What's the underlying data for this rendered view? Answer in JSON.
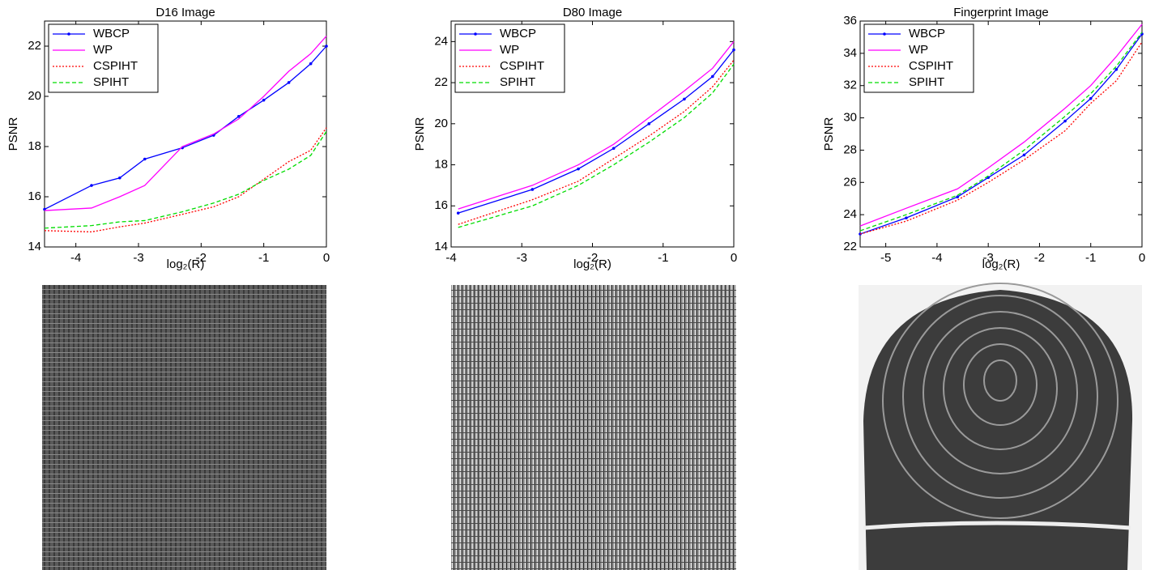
{
  "chart_data": [
    {
      "type": "line",
      "title": "D16 Image",
      "x_label": "log₂(R)",
      "y_label": "PSNR",
      "x": [
        -4.5,
        -3.75,
        -3.3,
        -2.9,
        -2.3,
        -1.8,
        -1.4,
        -1.0,
        -0.6,
        -0.25,
        0
      ],
      "series": [
        {
          "name": "WBCP",
          "color": "#0000ff",
          "style": "solid",
          "marker": true,
          "values": [
            15.5,
            16.45,
            16.75,
            17.5,
            17.95,
            18.45,
            19.2,
            19.85,
            20.55,
            21.3,
            22.0
          ]
        },
        {
          "name": "WP",
          "color": "#ff00ff",
          "style": "solid",
          "marker": false,
          "values": [
            15.45,
            15.55,
            16.0,
            16.45,
            18.0,
            18.5,
            19.1,
            20.0,
            21.0,
            21.7,
            22.4
          ]
        },
        {
          "name": "CSPIHT",
          "color": "#ff0000",
          "style": "dotted",
          "marker": false,
          "values": [
            14.65,
            14.6,
            14.8,
            14.95,
            15.3,
            15.6,
            16.0,
            16.7,
            17.4,
            17.85,
            18.75
          ]
        },
        {
          "name": "SPIHT",
          "color": "#00dd00",
          "style": "dashed",
          "marker": false,
          "values": [
            14.75,
            14.85,
            15.0,
            15.05,
            15.4,
            15.75,
            16.1,
            16.65,
            17.1,
            17.65,
            18.6
          ]
        }
      ],
      "xlim": [
        -4.5,
        0
      ],
      "xticks": [
        -4,
        -3,
        -2,
        -1,
        0
      ],
      "ylim": [
        14,
        23
      ],
      "yticks": [
        14,
        16,
        18,
        20,
        22
      ],
      "legend": "upper left"
    },
    {
      "type": "line",
      "title": "D80 Image",
      "x_label": "log₂(R)",
      "y_label": "PSNR",
      "x": [
        -3.9,
        -2.85,
        -2.2,
        -1.7,
        -1.2,
        -0.7,
        -0.3,
        0
      ],
      "series": [
        {
          "name": "WBCP",
          "color": "#0000ff",
          "style": "solid",
          "marker": true,
          "values": [
            15.65,
            16.8,
            17.8,
            18.8,
            20.0,
            21.2,
            22.3,
            23.6
          ]
        },
        {
          "name": "WP",
          "color": "#ff00ff",
          "style": "solid",
          "marker": false,
          "values": [
            15.85,
            17.0,
            18.0,
            19.0,
            20.3,
            21.6,
            22.7,
            24.0
          ]
        },
        {
          "name": "CSPIHT",
          "color": "#ff0000",
          "style": "dotted",
          "marker": false,
          "values": [
            15.1,
            16.3,
            17.2,
            18.3,
            19.4,
            20.6,
            21.8,
            23.1
          ]
        },
        {
          "name": "SPIHT",
          "color": "#00dd00",
          "style": "dashed",
          "marker": false,
          "values": [
            14.95,
            16.0,
            17.0,
            18.0,
            19.1,
            20.3,
            21.5,
            22.9
          ]
        }
      ],
      "xlim": [
        -4,
        0
      ],
      "xticks": [
        -4,
        -3,
        -2,
        -1,
        0
      ],
      "ylim": [
        14,
        25
      ],
      "yticks": [
        14,
        16,
        18,
        20,
        22,
        24
      ],
      "legend": "upper left"
    },
    {
      "type": "line",
      "title": "Fingerprint Image",
      "x_label": "log₂(R)",
      "y_label": "PSNR",
      "x": [
        -5.5,
        -4.6,
        -3.6,
        -3.0,
        -2.3,
        -1.5,
        -1.0,
        -0.5,
        0
      ],
      "series": [
        {
          "name": "WBCP",
          "color": "#0000ff",
          "style": "solid",
          "marker": true,
          "values": [
            22.8,
            23.8,
            25.1,
            26.3,
            27.7,
            29.8,
            31.2,
            33.0,
            35.2
          ]
        },
        {
          "name": "WP",
          "color": "#ff00ff",
          "style": "solid",
          "marker": false,
          "values": [
            23.3,
            24.4,
            25.6,
            26.9,
            28.5,
            30.6,
            32.0,
            33.8,
            35.8
          ]
        },
        {
          "name": "CSPIHT",
          "color": "#ff0000",
          "style": "dotted",
          "marker": false,
          "values": [
            22.8,
            23.6,
            24.9,
            26.0,
            27.4,
            29.2,
            30.9,
            32.3,
            34.7
          ]
        },
        {
          "name": "SPIHT",
          "color": "#00dd00",
          "style": "dashed",
          "marker": false,
          "values": [
            23.0,
            24.0,
            25.2,
            26.4,
            28.0,
            30.1,
            31.5,
            33.2,
            35.3
          ]
        }
      ],
      "xlim": [
        -5.5,
        0
      ],
      "xticks": [
        -5,
        -4,
        -3,
        -2,
        -1,
        0
      ],
      "ylim": [
        22,
        36
      ],
      "yticks": [
        22,
        24,
        26,
        28,
        30,
        32,
        34,
        36
      ],
      "legend": "upper left"
    }
  ]
}
